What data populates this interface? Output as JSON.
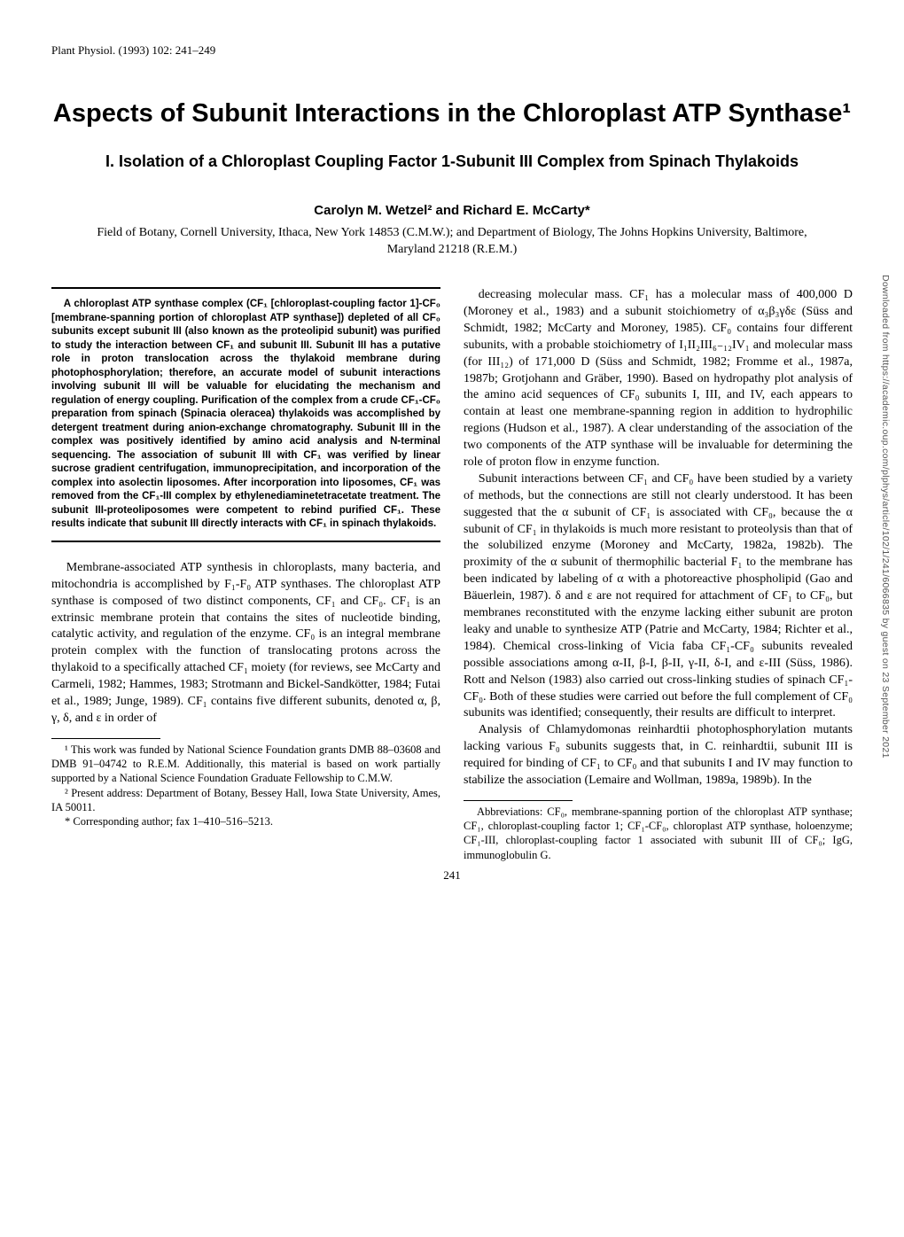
{
  "running_head": "Plant Physiol. (1993) 102: 241–249",
  "title": "Aspects of Subunit Interactions in the Chloroplast ATP Synthase¹",
  "subtitle": "I. Isolation of a Chloroplast Coupling Factor 1-Subunit III Complex from Spinach Thylakoids",
  "authors": "Carolyn M. Wetzel² and Richard E. McCarty*",
  "affiliation": "Field of Botany, Cornell University, Ithaca, New York 14853 (C.M.W.); and Department of Biology, The Johns Hopkins University, Baltimore, Maryland 21218 (R.E.M.)",
  "abstract": "A chloroplast ATP synthase complex (CF₁ [chloroplast-coupling factor 1]-CF₀ [membrane-spanning portion of chloroplast ATP synthase]) depleted of all CF₀ subunits except subunit III (also known as the proteolipid subunit) was purified to study the interaction between CF₁ and subunit III. Subunit III has a putative role in proton translocation across the thylakoid membrane during photophosphorylation; therefore, an accurate model of subunit interactions involving subunit III will be valuable for elucidating the mechanism and regulation of energy coupling. Purification of the complex from a crude CF₁-CF₀ preparation from spinach (Spinacia oleracea) thylakoids was accomplished by detergent treatment during anion-exchange chromatography. Subunit III in the complex was positively identified by amino acid analysis and N-terminal sequencing. The association of subunit III with CF₁ was verified by linear sucrose gradient centrifugation, immunoprecipitation, and incorporation of the complex into asolectin liposomes. After incorporation into liposomes, CF₁ was removed from the CF₁-III complex by ethylenediaminetetracetate treatment. The subunit III-proteoliposomes were competent to rebind purified CF₁. These results indicate that subunit III directly interacts with CF₁ in spinach thylakoids.",
  "body_p1": "Membrane-associated ATP synthesis in chloroplasts, many bacteria, and mitochondria is accomplished by F₁-F₀ ATP synthases. The chloroplast ATP synthase is composed of two distinct components, CF₁ and CF₀. CF₁ is an extrinsic membrane protein that contains the sites of nucleotide binding, catalytic activity, and regulation of the enzyme. CF₀ is an integral membrane protein complex with the function of translocating protons across the thylakoid to a specifically attached CF₁ moiety (for reviews, see McCarty and Carmeli, 1982; Hammes, 1983; Strotmann and Bickel-Sandkötter, 1984; Futai et al., 1989; Junge, 1989). CF₁ contains five different subunits, denoted α, β, γ, δ, and ε in order of",
  "body_p2": "decreasing molecular mass. CF₁ has a molecular mass of 400,000 D (Moroney et al., 1983) and a subunit stoichiometry of α₃β₃γδε (Süss and Schmidt, 1982; McCarty and Moroney, 1985). CF₀ contains four different subunits, with a probable stoichiometry of I₁II₂III₆₋₁₂IV₁ and molecular mass (for III₁₂) of 171,000 D (Süss and Schmidt, 1982; Fromme et al., 1987a, 1987b; Grotjohann and Gräber, 1990). Based on hydropathy plot analysis of the amino acid sequences of CF₀ subunits I, III, and IV, each appears to contain at least one membrane-spanning region in addition to hydrophilic regions (Hudson et al., 1987). A clear understanding of the association of the two components of the ATP synthase will be invaluable for determining the role of proton flow in enzyme function.",
  "body_p3": "Subunit interactions between CF₁ and CF₀ have been studied by a variety of methods, but the connections are still not clearly understood. It has been suggested that the α subunit of CF₁ is associated with CF₀, because the α subunit of CF₁ in thylakoids is much more resistant to proteolysis than that of the solubilized enzyme (Moroney and McCarty, 1982a, 1982b). The proximity of the α subunit of thermophilic bacterial F₁ to the membrane has been indicated by labeling of α with a photoreactive phospholipid (Gao and Bäuerlein, 1987). δ and ε are not required for attachment of CF₁ to CF₀, but membranes reconstituted with the enzyme lacking either subunit are proton leaky and unable to synthesize ATP (Patrie and McCarty, 1984; Richter et al., 1984). Chemical cross-linking of Vicia faba CF₁-CF₀ subunits revealed possible associations among α-II, β-I, β-II, γ-II, δ-I, and ε-III (Süss, 1986). Rott and Nelson (1983) also carried out cross-linking studies of spinach CF₁-CF₀. Both of these studies were carried out before the full complement of CF₀ subunits was identified; consequently, their results are difficult to interpret.",
  "body_p4": "Analysis of Chlamydomonas reinhardtii photophosphorylation mutants lacking various F₀ subunits suggests that, in C. reinhardtii, subunit III is required for binding of CF₁ to CF₀ and that subunits I and IV may function to stabilize the association (Lemaire and Wollman, 1989a, 1989b). In the",
  "footnote1": "¹ This work was funded by National Science Foundation grants DMB 88–03608 and DMB 91–04742 to R.E.M. Additionally, this material is based on work partially supported by a National Science Foundation Graduate Fellowship to C.M.W.",
  "footnote2": "² Present address: Department of Botany, Bessey Hall, Iowa State University, Ames, IA 50011.",
  "footnote3": "* Corresponding author; fax 1–410–516–5213.",
  "footnote_right": "Abbreviations: CF₀, membrane-spanning portion of the chloroplast ATP synthase; CF₁, chloroplast-coupling factor 1; CF₁-CF₀, chloroplast ATP synthase, holoenzyme; CF₁-III, chloroplast-coupling factor 1 associated with subunit III of CF₀; IgG, immunoglobulin G.",
  "page_number": "241",
  "side_note": "Downloaded from https://academic.oup.com/plphys/article/102/1/241/6066835 by guest on 23 September 2021"
}
